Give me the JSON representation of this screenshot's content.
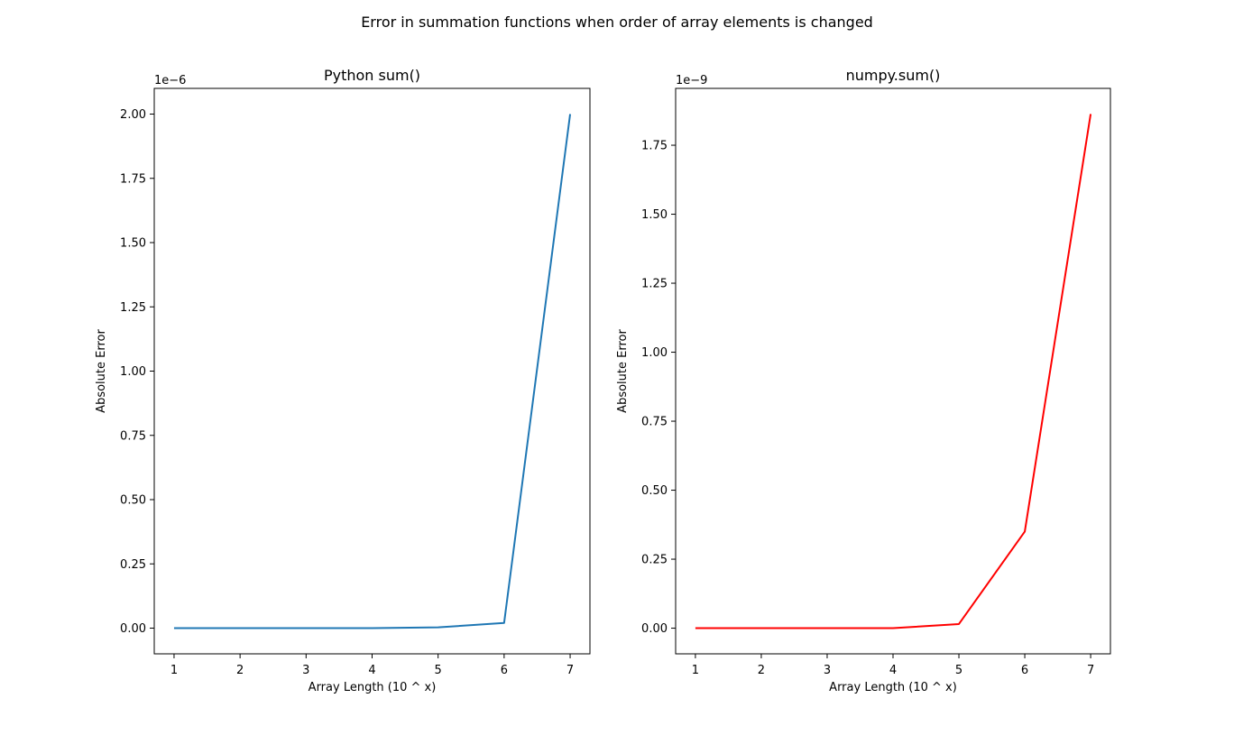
{
  "suptitle": "Error in summation functions when order of array elements is changed",
  "chart_data": [
    {
      "type": "line",
      "title": "Python sum()",
      "xlabel": "Array Length (10 ^ x)",
      "ylabel": "Absolute Error",
      "offset_text": "1e−6",
      "x": [
        1,
        2,
        3,
        4,
        5,
        6,
        7
      ],
      "series": [
        {
          "values": [
            0.0,
            0.0,
            0.0,
            0.0,
            0.003,
            0.02,
            2.0
          ],
          "color": "#1f77b4"
        }
      ],
      "xticks": [
        1,
        2,
        3,
        4,
        5,
        6,
        7
      ],
      "xtick_labels": [
        "1",
        "2",
        "3",
        "4",
        "5",
        "6",
        "7"
      ],
      "yticks": [
        0.0,
        0.25,
        0.5,
        0.75,
        1.0,
        1.25,
        1.5,
        1.75,
        2.0
      ],
      "ytick_labels": [
        "0.00",
        "0.25",
        "0.50",
        "0.75",
        "1.00",
        "1.25",
        "1.50",
        "1.75",
        "2.00"
      ],
      "xlim": [
        0.7,
        7.3
      ],
      "ylim": [
        -0.1,
        2.1
      ],
      "grid": false
    },
    {
      "type": "line",
      "title": "numpy.sum()",
      "xlabel": "Array Length (10 ^ x)",
      "ylabel": "Absolute Error",
      "offset_text": "1e−9",
      "x": [
        1,
        2,
        3,
        4,
        5,
        6,
        7
      ],
      "series": [
        {
          "values": [
            0.0,
            0.0,
            0.0,
            0.0,
            0.015,
            0.35,
            1.863
          ],
          "color": "#ff0000"
        }
      ],
      "xticks": [
        1,
        2,
        3,
        4,
        5,
        6,
        7
      ],
      "xtick_labels": [
        "1",
        "2",
        "3",
        "4",
        "5",
        "6",
        "7"
      ],
      "yticks": [
        0.0,
        0.25,
        0.5,
        0.75,
        1.0,
        1.25,
        1.5,
        1.75
      ],
      "ytick_labels": [
        "0.00",
        "0.25",
        "0.50",
        "0.75",
        "1.00",
        "1.25",
        "1.50",
        "1.75"
      ],
      "xlim": [
        0.7,
        7.3
      ],
      "ylim": [
        -0.093,
        1.956
      ],
      "grid": false
    }
  ]
}
